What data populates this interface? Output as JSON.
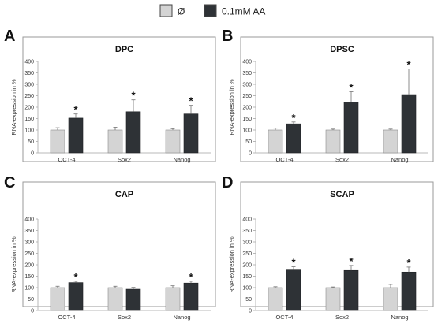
{
  "legend": {
    "placement": "top-center",
    "items": [
      {
        "label": "Ø",
        "color": "#d4d4d4"
      },
      {
        "label": "0.1mM AA",
        "color": "#2e3236"
      }
    ]
  },
  "colors": {
    "control": "#d4d4d4",
    "treated": "#2e3236",
    "border": "#9a9a9a",
    "axis": "#b8b8b8",
    "errorbar": "#707070"
  },
  "chart_data": [
    {
      "type": "bar",
      "panel_letter": "A",
      "title": "DPC",
      "ylabel": "RNA-expression in %",
      "xlabel": "",
      "ylim": [
        0,
        400
      ],
      "yticks": [
        0,
        50,
        100,
        150,
        200,
        250,
        300,
        350,
        400
      ],
      "grid": false,
      "categories": [
        "OCT-4",
        "Sox2",
        "Nanog"
      ],
      "series": [
        {
          "name": "Ø",
          "values": [
            100,
            100,
            100
          ],
          "errors": [
            10,
            12,
            6
          ]
        },
        {
          "name": "0.1mM AA",
          "values": [
            152,
            180,
            170
          ],
          "errors": [
            18,
            52,
            38
          ]
        }
      ],
      "significance": [
        "*",
        "*",
        "*"
      ]
    },
    {
      "type": "bar",
      "panel_letter": "B",
      "title": "DPSC",
      "ylabel": "RNA-expression in %",
      "xlabel": "",
      "ylim": [
        0,
        400
      ],
      "yticks": [
        0,
        50,
        100,
        150,
        200,
        250,
        300,
        350,
        400
      ],
      "grid": false,
      "categories": [
        "OCT-4",
        "Sox2",
        "Nanog"
      ],
      "series": [
        {
          "name": "Ø",
          "values": [
            100,
            100,
            100
          ],
          "errors": [
            8,
            4,
            4
          ]
        },
        {
          "name": "0.1mM AA",
          "values": [
            127,
            222,
            255
          ],
          "errors": [
            8,
            45,
            112
          ]
        }
      ],
      "significance": [
        "*",
        "*",
        "*"
      ]
    },
    {
      "type": "bar",
      "panel_letter": "C",
      "title": "CAP",
      "ylabel": "RNA-expression in %",
      "xlabel": "",
      "ylim": [
        0,
        400
      ],
      "yticks": [
        0,
        50,
        100,
        150,
        200,
        250,
        300,
        350,
        400
      ],
      "grid": false,
      "categories": [
        "OCT-4",
        "Sox2",
        "Nanog"
      ],
      "series": [
        {
          "name": "Ø",
          "values": [
            100,
            100,
            100
          ],
          "errors": [
            6,
            6,
            8
          ]
        },
        {
          "name": "0.1mM AA",
          "values": [
            122,
            93,
            120
          ],
          "errors": [
            6,
            8,
            8
          ]
        }
      ],
      "significance": [
        "*",
        "",
        "*"
      ]
    },
    {
      "type": "bar",
      "panel_letter": "D",
      "title": "SCAP",
      "ylabel": "RNA-expression in %",
      "xlabel": "",
      "ylim": [
        0,
        400
      ],
      "yticks": [
        0,
        50,
        100,
        150,
        200,
        250,
        300,
        350,
        400
      ],
      "grid": false,
      "categories": [
        "OCT-4",
        "Sox2",
        "Nanog"
      ],
      "series": [
        {
          "name": "Ø",
          "values": [
            100,
            100,
            100
          ],
          "errors": [
            4,
            3,
            14
          ]
        },
        {
          "name": "0.1mM AA",
          "values": [
            177,
            175,
            168
          ],
          "errors": [
            14,
            22,
            22
          ]
        }
      ],
      "significance": [
        "*",
        "*",
        "*"
      ]
    }
  ]
}
